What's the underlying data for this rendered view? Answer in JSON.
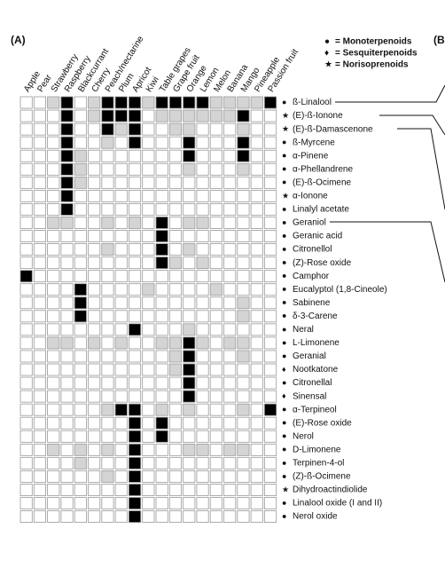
{
  "panel_label": "(A)",
  "next_panel_label": "(B",
  "legend": [
    {
      "symbol": "●",
      "label": "= Monoterpenoids"
    },
    {
      "symbol": "♦",
      "label": "= Sesquiterpenoids"
    },
    {
      "symbol": "★",
      "label": "= Norisoprenoids"
    }
  ],
  "colors": [
    "#ffffff",
    "#d4d4d4",
    "#000000"
  ],
  "fruits": [
    "Apple",
    "Pear",
    "Strawberry",
    "Raspberry",
    "Blackcurrant",
    "Cherry",
    "Peach/nectarine",
    "Plum",
    "Apricot",
    "Kiwi",
    "Table grapes",
    "Grape fruit",
    "Orange",
    "Lemon",
    "Melon",
    "Banana",
    "Mango",
    "Pineapple",
    "Passion fruit"
  ],
  "compounds": [
    {
      "name": "ß-Linalool",
      "group": 0,
      "cells": [
        0,
        0,
        1,
        2,
        0,
        1,
        2,
        2,
        2,
        1,
        2,
        2,
        2,
        2,
        1,
        1,
        1,
        1,
        2
      ]
    },
    {
      "name": "(E)-ß-Ionone",
      "group": 2,
      "cells": [
        0,
        0,
        0,
        2,
        0,
        1,
        2,
        2,
        2,
        0,
        1,
        1,
        1,
        1,
        1,
        1,
        2,
        0,
        0
      ]
    },
    {
      "name": "(E)-ß-Damascenone",
      "group": 2,
      "cells": [
        0,
        0,
        0,
        2,
        0,
        0,
        2,
        1,
        2,
        0,
        0,
        1,
        1,
        0,
        0,
        0,
        1,
        0,
        0
      ]
    },
    {
      "name": "ß-Myrcene",
      "group": 0,
      "cells": [
        0,
        0,
        0,
        2,
        0,
        0,
        1,
        0,
        2,
        0,
        0,
        0,
        2,
        0,
        0,
        0,
        2,
        0,
        0
      ]
    },
    {
      "name": "α-Pinene",
      "group": 0,
      "cells": [
        0,
        0,
        0,
        2,
        1,
        0,
        0,
        0,
        0,
        0,
        0,
        0,
        2,
        0,
        0,
        0,
        2,
        0,
        0
      ]
    },
    {
      "name": "α-Phellandrene",
      "group": 0,
      "cells": [
        0,
        0,
        0,
        2,
        1,
        0,
        0,
        0,
        0,
        0,
        0,
        0,
        1,
        0,
        0,
        0,
        1,
        0,
        0
      ]
    },
    {
      "name": "(E)-ß-Ocimene",
      "group": 0,
      "cells": [
        0,
        0,
        0,
        2,
        1,
        0,
        0,
        0,
        0,
        0,
        0,
        0,
        0,
        0,
        0,
        0,
        0,
        0,
        0
      ]
    },
    {
      "name": "α-Ionone",
      "group": 2,
      "cells": [
        0,
        0,
        0,
        2,
        0,
        0,
        0,
        0,
        0,
        0,
        0,
        0,
        0,
        0,
        0,
        0,
        0,
        0,
        0
      ]
    },
    {
      "name": "Linalyl acetate",
      "group": 0,
      "cells": [
        0,
        0,
        0,
        2,
        0,
        0,
        0,
        0,
        0,
        0,
        0,
        0,
        0,
        0,
        0,
        0,
        0,
        0,
        0
      ]
    },
    {
      "name": "Geraniol",
      "group": 0,
      "cells": [
        0,
        0,
        1,
        1,
        0,
        0,
        1,
        0,
        1,
        0,
        2,
        0,
        1,
        1,
        0,
        0,
        0,
        0,
        0
      ]
    },
    {
      "name": "Geranic acid",
      "group": 0,
      "cells": [
        0,
        0,
        0,
        0,
        0,
        0,
        0,
        0,
        0,
        0,
        2,
        0,
        0,
        0,
        0,
        0,
        0,
        0,
        0
      ]
    },
    {
      "name": "Citronellol",
      "group": 0,
      "cells": [
        0,
        0,
        0,
        0,
        0,
        0,
        1,
        0,
        0,
        0,
        2,
        0,
        1,
        0,
        0,
        0,
        0,
        0,
        0
      ]
    },
    {
      "name": "(Z)-Rose oxide",
      "group": 0,
      "cells": [
        0,
        0,
        0,
        0,
        0,
        0,
        0,
        0,
        0,
        0,
        2,
        1,
        0,
        1,
        0,
        0,
        0,
        0,
        0
      ]
    },
    {
      "name": "Camphor",
      "group": 0,
      "cells": [
        2,
        0,
        0,
        0,
        0,
        0,
        0,
        0,
        0,
        0,
        0,
        0,
        0,
        0,
        0,
        0,
        0,
        0,
        0
      ]
    },
    {
      "name": "Eucalyptol (1,8-Cineole)",
      "group": 0,
      "cells": [
        0,
        0,
        0,
        0,
        2,
        0,
        0,
        0,
        0,
        1,
        0,
        0,
        0,
        0,
        1,
        0,
        0,
        0,
        0
      ]
    },
    {
      "name": "Sabinene",
      "group": 0,
      "cells": [
        0,
        0,
        0,
        0,
        2,
        0,
        0,
        0,
        0,
        0,
        0,
        0,
        0,
        0,
        0,
        0,
        1,
        0,
        0
      ]
    },
    {
      "name": "δ-3-Carene",
      "group": 0,
      "cells": [
        0,
        0,
        0,
        0,
        2,
        0,
        0,
        0,
        0,
        0,
        0,
        0,
        0,
        0,
        0,
        0,
        1,
        0,
        0
      ]
    },
    {
      "name": "Neral",
      "group": 0,
      "cells": [
        0,
        0,
        0,
        0,
        0,
        0,
        0,
        0,
        2,
        0,
        0,
        0,
        1,
        0,
        0,
        0,
        0,
        0,
        0
      ]
    },
    {
      "name": "L-Limonene",
      "group": 0,
      "cells": [
        0,
        0,
        1,
        1,
        0,
        1,
        0,
        1,
        0,
        0,
        1,
        1,
        2,
        1,
        0,
        1,
        1,
        0,
        0
      ]
    },
    {
      "name": "Geranial",
      "group": 0,
      "cells": [
        0,
        0,
        0,
        0,
        0,
        0,
        0,
        0,
        0,
        0,
        0,
        1,
        2,
        0,
        0,
        0,
        1,
        0,
        0
      ]
    },
    {
      "name": "Nootkatone",
      "group": 1,
      "cells": [
        0,
        0,
        0,
        0,
        0,
        0,
        0,
        0,
        0,
        0,
        0,
        1,
        2,
        0,
        0,
        0,
        0,
        0,
        0
      ]
    },
    {
      "name": "Citronellal",
      "group": 0,
      "cells": [
        0,
        0,
        0,
        0,
        0,
        0,
        0,
        0,
        0,
        0,
        0,
        0,
        2,
        0,
        0,
        0,
        0,
        0,
        0
      ]
    },
    {
      "name": "Sinensal",
      "group": 1,
      "cells": [
        0,
        0,
        0,
        0,
        0,
        0,
        0,
        0,
        0,
        0,
        0,
        0,
        2,
        0,
        0,
        0,
        0,
        0,
        0
      ]
    },
    {
      "name": "α-Terpineol",
      "group": 0,
      "cells": [
        0,
        0,
        0,
        0,
        0,
        0,
        1,
        2,
        2,
        0,
        1,
        0,
        1,
        0,
        0,
        0,
        1,
        0,
        2
      ]
    },
    {
      "name": "(E)-Rose oxide",
      "group": 0,
      "cells": [
        0,
        0,
        0,
        0,
        0,
        0,
        0,
        0,
        2,
        0,
        2,
        0,
        0,
        0,
        0,
        0,
        0,
        0,
        0
      ]
    },
    {
      "name": "Nerol",
      "group": 0,
      "cells": [
        0,
        0,
        0,
        0,
        0,
        0,
        0,
        0,
        2,
        0,
        2,
        0,
        0,
        0,
        0,
        0,
        0,
        0,
        0
      ]
    },
    {
      "name": "D-Limonene",
      "group": 0,
      "cells": [
        0,
        0,
        1,
        0,
        1,
        0,
        1,
        0,
        2,
        0,
        0,
        0,
        1,
        1,
        0,
        1,
        1,
        0,
        0
      ]
    },
    {
      "name": "Terpinen-4-ol",
      "group": 0,
      "cells": [
        0,
        0,
        0,
        0,
        1,
        0,
        0,
        0,
        2,
        0,
        0,
        0,
        0,
        0,
        0,
        0,
        0,
        0,
        0
      ]
    },
    {
      "name": "(Z)-ß-Ocimene",
      "group": 0,
      "cells": [
        0,
        0,
        0,
        0,
        0,
        0,
        1,
        0,
        2,
        0,
        0,
        0,
        0,
        0,
        0,
        0,
        0,
        0,
        0
      ]
    },
    {
      "name": "Dihydroactindiolide",
      "group": 2,
      "cells": [
        0,
        0,
        0,
        0,
        0,
        0,
        0,
        0,
        2,
        0,
        0,
        0,
        0,
        0,
        0,
        0,
        0,
        0,
        0
      ]
    },
    {
      "name": "Linalool oxide (I and II)",
      "group": 0,
      "cells": [
        0,
        0,
        0,
        0,
        0,
        0,
        0,
        0,
        2,
        0,
        0,
        0,
        0,
        0,
        0,
        0,
        0,
        0,
        0
      ]
    },
    {
      "name": "Nerol oxide",
      "group": 0,
      "cells": [
        0,
        0,
        0,
        0,
        0,
        0,
        0,
        0,
        2,
        0,
        0,
        0,
        0,
        0,
        0,
        0,
        0,
        0,
        0
      ]
    }
  ]
}
